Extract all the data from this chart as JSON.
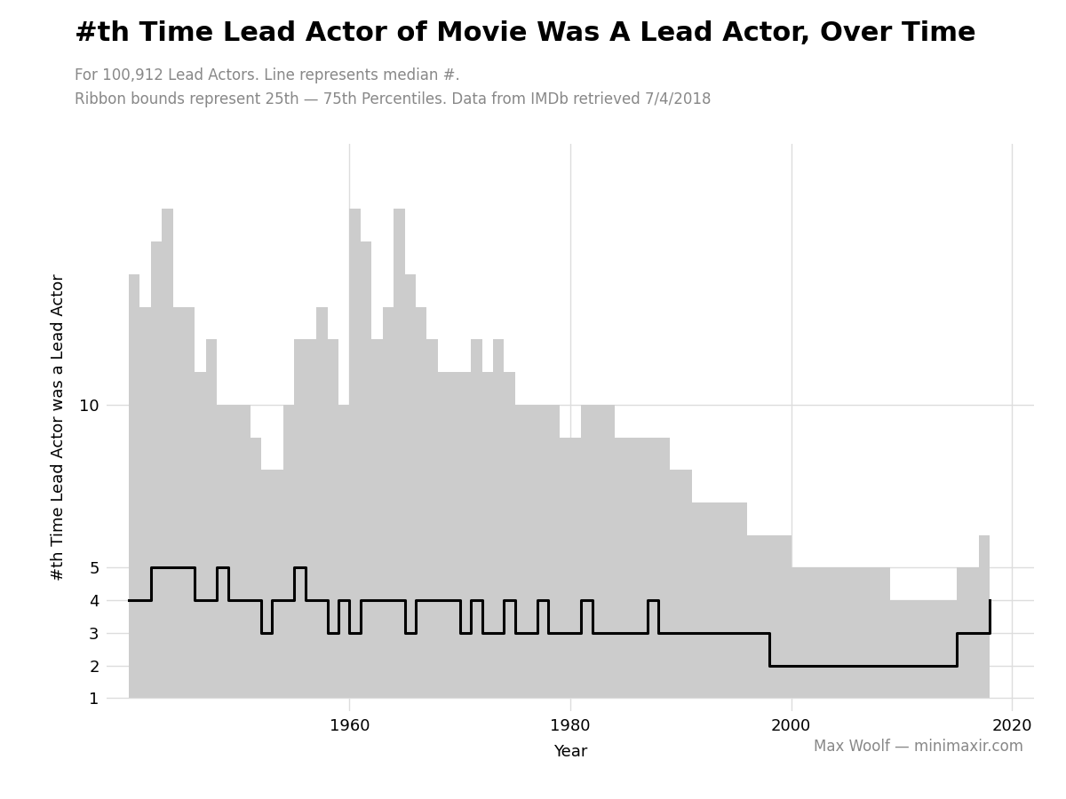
{
  "title": "#th Time Lead Actor of Movie Was A Lead Actor, Over Time",
  "subtitle_line1": "For 100,912 Lead Actors. Line represents median #.",
  "subtitle_line2": "Ribbon bounds represent 25th — 75th Percentiles. Data from IMDb retrieved 7/4/2018",
  "xlabel": "Year",
  "ylabel": "#th Time Lead Actor was a Lead Actor",
  "attribution": "Max Woolf — minimaxir.com",
  "background_color": "#ffffff",
  "panel_color": "#ffffff",
  "ribbon_color": "#cccccc",
  "line_color": "#000000",
  "grid_color": "#dddddd",
  "years": [
    1940,
    1941,
    1942,
    1943,
    1944,
    1945,
    1946,
    1947,
    1948,
    1949,
    1950,
    1951,
    1952,
    1953,
    1954,
    1955,
    1956,
    1957,
    1958,
    1959,
    1960,
    1961,
    1962,
    1963,
    1964,
    1965,
    1966,
    1967,
    1968,
    1969,
    1970,
    1971,
    1972,
    1973,
    1974,
    1975,
    1976,
    1977,
    1978,
    1979,
    1980,
    1981,
    1982,
    1983,
    1984,
    1985,
    1986,
    1987,
    1988,
    1989,
    1990,
    1991,
    1992,
    1993,
    1994,
    1995,
    1996,
    1997,
    1998,
    1999,
    2000,
    2001,
    2002,
    2003,
    2004,
    2005,
    2006,
    2007,
    2008,
    2009,
    2010,
    2011,
    2012,
    2013,
    2014,
    2015,
    2016,
    2017,
    2018
  ],
  "median": [
    4,
    4,
    5,
    5,
    5,
    5,
    4,
    4,
    5,
    4,
    4,
    4,
    3,
    4,
    4,
    5,
    4,
    4,
    3,
    4,
    3,
    4,
    4,
    4,
    4,
    3,
    4,
    4,
    4,
    4,
    3,
    4,
    3,
    3,
    4,
    3,
    3,
    4,
    3,
    3,
    3,
    4,
    3,
    3,
    3,
    3,
    3,
    4,
    3,
    3,
    3,
    3,
    3,
    3,
    3,
    3,
    3,
    3,
    2,
    2,
    2,
    2,
    2,
    2,
    2,
    2,
    2,
    2,
    2,
    2,
    2,
    2,
    2,
    2,
    2,
    3,
    3,
    3,
    4
  ],
  "p25": [
    1,
    1,
    1,
    1,
    1,
    1,
    1,
    1,
    1,
    1,
    1,
    1,
    1,
    1,
    1,
    1,
    1,
    1,
    1,
    1,
    1,
    1,
    1,
    1,
    1,
    1,
    1,
    1,
    1,
    1,
    1,
    1,
    1,
    1,
    1,
    1,
    1,
    1,
    1,
    1,
    1,
    1,
    1,
    1,
    1,
    1,
    1,
    1,
    1,
    1,
    1,
    1,
    1,
    1,
    1,
    1,
    1,
    1,
    1,
    1,
    1,
    1,
    1,
    1,
    1,
    1,
    1,
    1,
    1,
    1,
    1,
    1,
    1,
    1,
    1,
    1,
    1,
    1,
    1
  ],
  "p75": [
    14,
    13,
    15,
    16,
    13,
    13,
    11,
    12,
    10,
    10,
    10,
    9,
    8,
    8,
    10,
    12,
    12,
    13,
    12,
    10,
    16,
    15,
    12,
    13,
    16,
    14,
    13,
    12,
    11,
    11,
    11,
    12,
    11,
    12,
    11,
    10,
    10,
    10,
    10,
    9,
    9,
    10,
    10,
    10,
    9,
    9,
    9,
    9,
    9,
    8,
    8,
    7,
    7,
    7,
    7,
    7,
    6,
    6,
    6,
    6,
    5,
    5,
    5,
    5,
    5,
    5,
    5,
    5,
    5,
    4,
    4,
    4,
    4,
    4,
    4,
    5,
    5,
    6,
    8
  ],
  "xlim": [
    1938,
    2022
  ],
  "ylim": [
    0.6,
    18
  ],
  "xticks": [
    1960,
    1980,
    2000,
    2020
  ],
  "yticks": [
    1,
    2,
    3,
    4,
    5,
    10
  ],
  "title_fontsize": 22,
  "subtitle_fontsize": 12,
  "axis_label_fontsize": 13,
  "tick_fontsize": 13,
  "attribution_fontsize": 12,
  "line_width": 2.2
}
